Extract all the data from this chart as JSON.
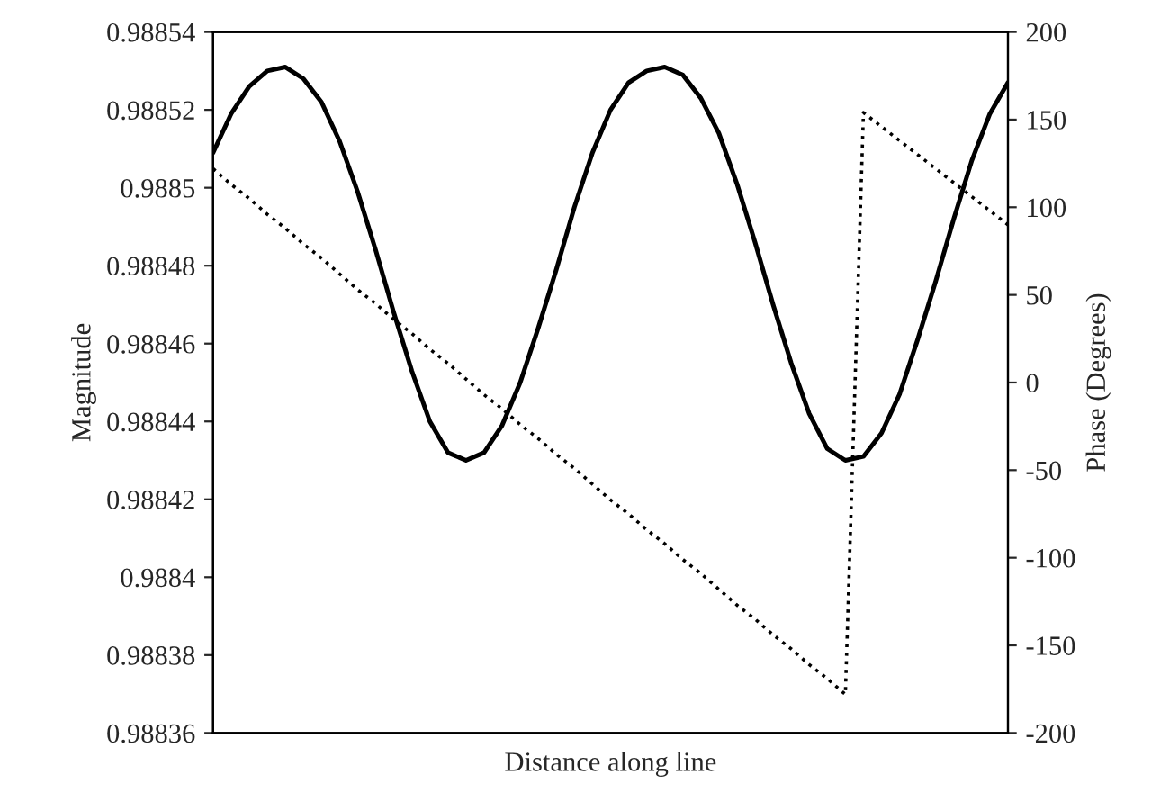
{
  "chart_data": {
    "type": "line",
    "xlabel": "Distance along line",
    "ylabel": "Magnitude",
    "y2label": "Phase (Degrees)",
    "categories": [
      null,
      null,
      null,
      null,
      null,
      null,
      null,
      null,
      null,
      null,
      null,
      null,
      null,
      null,
      null,
      null,
      null,
      null,
      null,
      null,
      null,
      null,
      null,
      null,
      null,
      null,
      null,
      null,
      null,
      null,
      null,
      null,
      null,
      null,
      null,
      null,
      null,
      null,
      null,
      null,
      null,
      null,
      null,
      null,
      null
    ],
    "series": [
      {
        "color": "#000000",
        "line_style": "solid",
        "values": [
          0.988509,
          0.988519,
          0.988526,
          0.98853,
          0.988531,
          0.988528,
          0.988522,
          0.988512,
          0.988499,
          0.988484,
          0.988468,
          0.988453,
          0.98844,
          0.988432,
          0.98843,
          0.988432,
          0.988439,
          0.98845,
          0.988464,
          0.988479,
          0.988495,
          0.988509,
          0.98852,
          0.988527,
          0.98853,
          0.988531,
          0.988529,
          0.988523,
          0.988514,
          0.988501,
          0.988486,
          0.98847,
          0.988455,
          0.988442,
          0.988433,
          0.98843,
          0.988431,
          0.988437,
          0.988447,
          0.988461,
          0.988476,
          0.988492,
          0.988507,
          0.988519,
          0.988527
        ]
      },
      {
        "color": "#000000",
        "line_style": "dotted",
        "axis": "y2",
        "values": [
          122,
          113,
          105,
          96,
          88,
          79,
          71,
          62,
          53,
          45,
          36,
          28,
          19,
          11,
          2,
          -7,
          -15,
          -24,
          -32,
          -41,
          -49,
          -58,
          -67,
          -75,
          -84,
          -92,
          -101,
          -109,
          -118,
          -127,
          -135,
          -144,
          -152,
          -161,
          -169,
          -178,
          154,
          146,
          138,
          130,
          122,
          114,
          106,
          98,
          90
        ]
      }
    ],
    "ylim": [
      0.98836,
      0.98854
    ],
    "yticks": [
      0.98836,
      0.98838,
      0.9884,
      0.98842,
      0.98844,
      0.98846,
      0.98848,
      0.9885,
      0.98852,
      0.98854
    ],
    "y2lim": [
      -200,
      200
    ],
    "y2ticks": [
      -200,
      -150,
      -100,
      -50,
      0,
      50,
      100,
      150,
      200
    ],
    "grid": false,
    "legend": false
  }
}
